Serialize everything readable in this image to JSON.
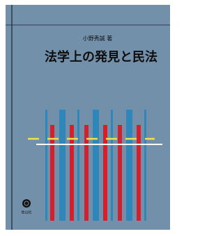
{
  "author": "小野秀誠 著",
  "title": "法学上の発見と民法",
  "publisher": "信山社"
}
